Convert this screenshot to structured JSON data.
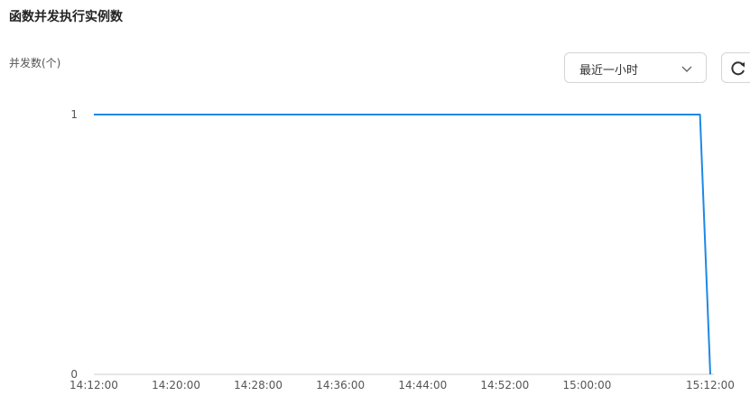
{
  "page": {
    "title": "函数并发执行实例数"
  },
  "controls": {
    "range_label": "最近一小时",
    "refresh_icon": "refresh-icon",
    "chevron_icon": "chevron-down-icon"
  },
  "chart_data": {
    "type": "line",
    "title": "函数并发执行实例数",
    "ylabel": "并发数(个)",
    "xlabel": "",
    "x_ticks": [
      "14:12:00",
      "14:20:00",
      "14:28:00",
      "14:36:00",
      "14:44:00",
      "14:52:00",
      "15:00:00",
      "15:12:00"
    ],
    "y_ticks": [
      0,
      1
    ],
    "ylim": [
      0,
      1
    ],
    "xlim": [
      "14:12:00",
      "15:12:00"
    ],
    "grid": false,
    "series": [
      {
        "color": "#1e88e5",
        "x": [
          "14:12:00",
          "15:11:00",
          "15:12:00"
        ],
        "y": [
          1,
          1,
          0
        ]
      }
    ]
  }
}
